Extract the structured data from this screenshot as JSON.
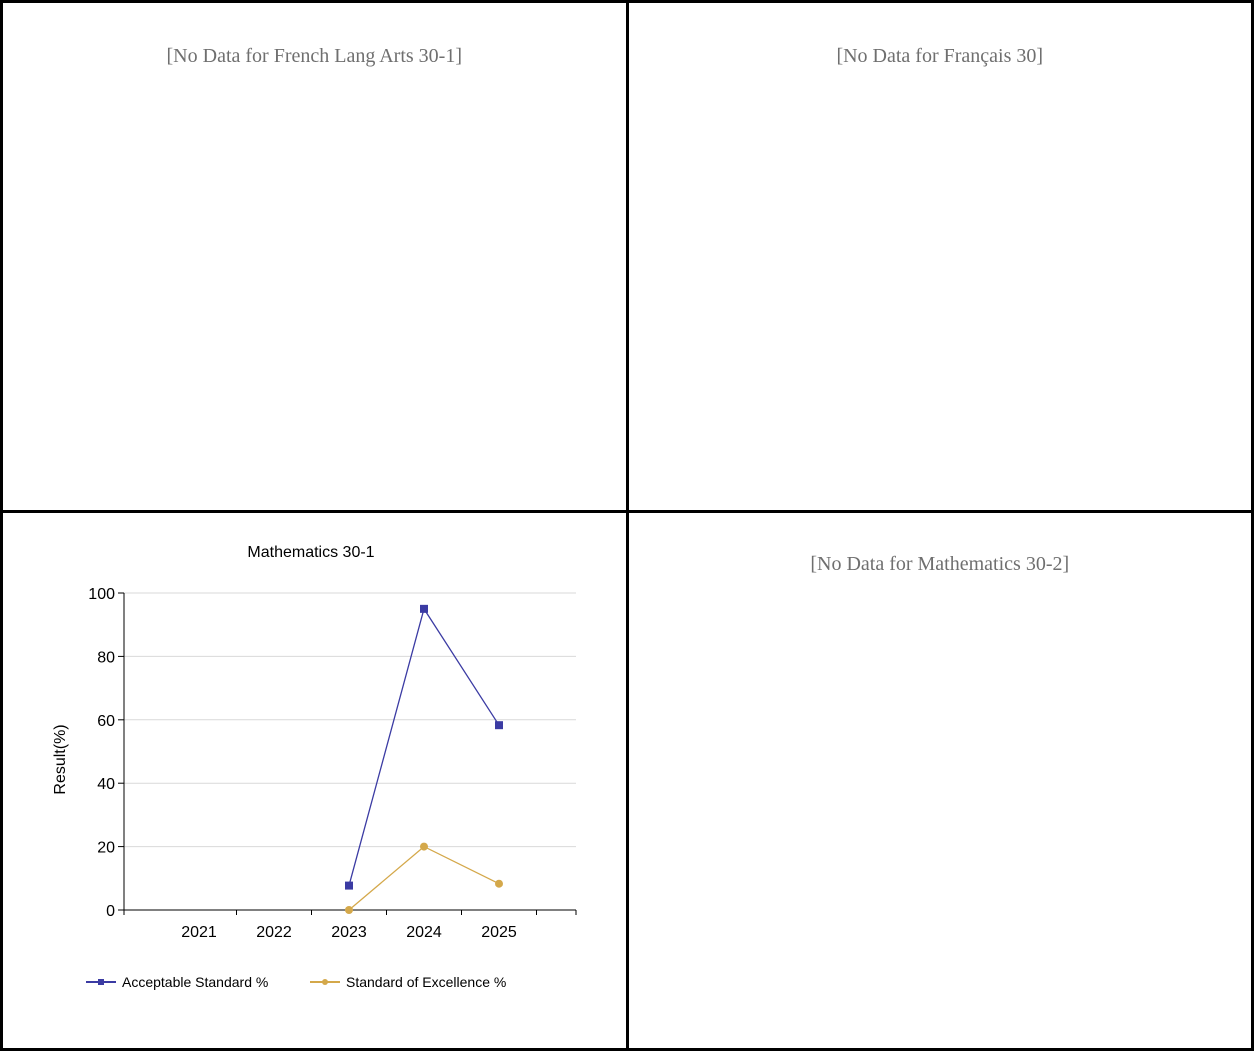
{
  "panels": {
    "french_lang_arts": {
      "message": "[No Data for French Lang Arts 30-1]"
    },
    "francais": {
      "message": "[No Data for Français 30]"
    },
    "mathematics_30_2": {
      "message": "[No Data for Mathematics 30-2]"
    }
  },
  "colors": {
    "acceptable": "#3b3ba3",
    "excellence": "#d4a84a",
    "gridline": "#d9d9d9",
    "nodata_text": "#6f6f6f"
  },
  "chart_data": {
    "type": "line",
    "title": "Mathematics 30-1",
    "xlabel": "",
    "ylabel": "Result(%)",
    "categories": [
      "2021",
      "2022",
      "2023",
      "2024",
      "2025"
    ],
    "ylim": [
      0,
      100
    ],
    "yticks": [
      0,
      20,
      40,
      60,
      80,
      100
    ],
    "grid": true,
    "legend_position": "bottom",
    "series": [
      {
        "name": "Acceptable Standard %",
        "marker": "square",
        "color": "#3b3ba3",
        "values": [
          null,
          null,
          7.7,
          95,
          58.3
        ]
      },
      {
        "name": "Standard of Excellence %",
        "marker": "circle",
        "color": "#d4a84a",
        "values": [
          null,
          null,
          0,
          20,
          8.3
        ]
      }
    ]
  }
}
